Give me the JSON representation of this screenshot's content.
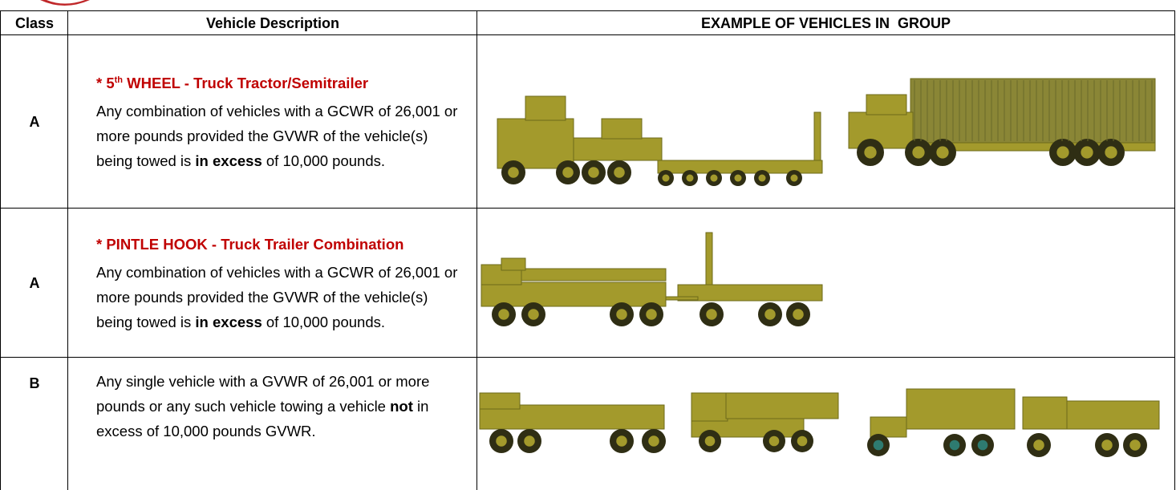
{
  "header": {
    "class": "Class",
    "description": "Vehicle Description",
    "examples": "EXAMPLE OF VEHICLES IN  GROUP"
  },
  "rows": [
    {
      "class": "A",
      "title": [
        "* 5",
        "th",
        " WHEEL - Truck Tractor/Semitrailer"
      ],
      "description": [
        "Any combination of vehicles with a GCWR of 26,001 or more pounds provided the GVWR of the vehicle(s) being towed is ",
        "in excess",
        " of 10,000 pounds."
      ]
    },
    {
      "class": "A",
      "title": [
        "* PINTLE HOOK - Truck Trailer Combination"
      ],
      "description": [
        "Any combination of vehicles with a GCWR of 26,001 or more pounds provided the GVWR of the vehicle(s) being towed is ",
        "in excess",
        " of 10,000 pounds."
      ]
    },
    {
      "class": "B",
      "description": [
        "Any single vehicle with a GVWR of 26,001 or more pounds or any such vehicle towing a vehicle ",
        "not",
        " in excess of 10,000 pounds GVWR."
      ]
    }
  ]
}
